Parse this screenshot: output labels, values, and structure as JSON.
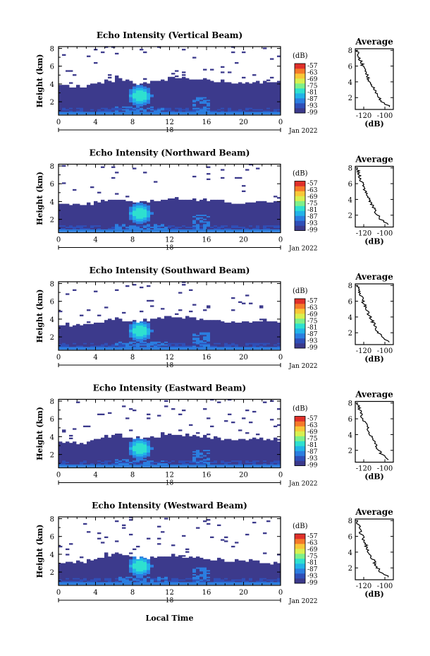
{
  "date_label": "Jan 2022",
  "xlabel": "Local Time",
  "day_label": "18",
  "colorbar": {
    "unit": "(dB)",
    "ticks": [
      "-57",
      "-63",
      "-69",
      "-75",
      "-81",
      "-87",
      "-93",
      "-99"
    ],
    "colors": [
      "#3c3a8c",
      "#2f4fb8",
      "#2b7ee0",
      "#22b3e8",
      "#2ee0d0",
      "#7ef08a",
      "#d8f050",
      "#f8c838",
      "#f57a2a",
      "#e0302a"
    ]
  },
  "chart_data": [
    {
      "type": "heatmap",
      "title": "Echo Intensity (Vertical Beam)",
      "ylabel": "Height (km)",
      "x_ticks": [
        "0",
        "4",
        "8",
        "12",
        "16",
        "20",
        "0"
      ],
      "y_ticks": [
        "2",
        "4",
        "6",
        "8"
      ],
      "xlim": [
        0,
        24
      ],
      "ylim": [
        0.5,
        8.2
      ],
      "zlim": [
        -99,
        -57
      ],
      "cloud_top_km": [
        3.8,
        3.6,
        3.6,
        3.8,
        4.1,
        4.3,
        4.7,
        4.4,
        4.0,
        4.1,
        4.3,
        4.4,
        4.6,
        4.6,
        4.5,
        4.4,
        4.3,
        4.2,
        4.1,
        4.0,
        4.0,
        4.1,
        4.2,
        4.1,
        4.0
      ],
      "average_profile": {
        "title": "Average",
        "xlabel": "(dB)",
        "x_ticks": [
          "-120",
          "-100"
        ],
        "y_ticks": [
          "2",
          "4",
          "6",
          "8"
        ],
        "xlim": [
          -128,
          -92
        ],
        "ylim": [
          0.5,
          8.2
        ],
        "height_km": [
          0.8,
          1.5,
          2.0,
          2.5,
          3.0,
          3.5,
          4.0,
          4.5,
          5.0,
          5.5,
          6.0,
          6.5,
          7.0,
          7.5,
          8.0
        ],
        "value_db": [
          -95,
          -103,
          -106,
          -108,
          -110,
          -112,
          -114,
          -116,
          -117,
          -119,
          -121,
          -122,
          -124,
          -125,
          -126
        ]
      }
    },
    {
      "type": "heatmap",
      "title": "Echo Intensity (Northward Beam)",
      "ylabel": "Height (km)",
      "x_ticks": [
        "0",
        "4",
        "8",
        "12",
        "16",
        "20",
        "0"
      ],
      "y_ticks": [
        "2",
        "4",
        "6",
        "8"
      ],
      "xlim": [
        0,
        24
      ],
      "ylim": [
        0.5,
        8.2
      ],
      "zlim": [
        -99,
        -57
      ],
      "cloud_top_km": [
        3.6,
        3.5,
        3.5,
        3.7,
        3.9,
        4.1,
        4.2,
        4.0,
        3.9,
        3.9,
        4.1,
        4.2,
        4.3,
        4.2,
        4.1,
        4.1,
        4.0,
        3.9,
        3.9,
        3.8,
        3.8,
        3.9,
        4.0,
        3.9,
        3.8
      ],
      "average_profile": {
        "title": "Average",
        "xlabel": "(dB)",
        "x_ticks": [
          "-120",
          "-100"
        ],
        "y_ticks": [
          "2",
          "4",
          "6",
          "8"
        ],
        "xlim": [
          -128,
          -92
        ],
        "ylim": [
          0.5,
          8.2
        ],
        "height_km": [
          0.8,
          1.5,
          2.0,
          2.5,
          3.0,
          3.5,
          4.0,
          4.5,
          5.0,
          5.5,
          6.0,
          6.5,
          7.0,
          7.5,
          8.0
        ],
        "value_db": [
          -96,
          -104,
          -107,
          -109,
          -111,
          -113,
          -115,
          -117,
          -118,
          -120,
          -121,
          -123,
          -124,
          -125,
          -126
        ]
      }
    },
    {
      "type": "heatmap",
      "title": "Echo Intensity (Southward Beam)",
      "ylabel": "Height (km)",
      "x_ticks": [
        "0",
        "4",
        "8",
        "12",
        "16",
        "20",
        "0"
      ],
      "y_ticks": [
        "2",
        "4",
        "6",
        "8"
      ],
      "xlim": [
        0,
        24
      ],
      "ylim": [
        0.5,
        8.2
      ],
      "zlim": [
        -99,
        -57
      ],
      "cloud_top_km": [
        3.3,
        3.2,
        3.2,
        3.4,
        3.6,
        3.9,
        4.0,
        3.8,
        3.7,
        3.8,
        4.0,
        4.1,
        4.2,
        4.1,
        4.0,
        3.9,
        3.8,
        3.7,
        3.6,
        3.6,
        3.6,
        3.7,
        3.8,
        3.7,
        3.6
      ],
      "average_profile": {
        "title": "Average",
        "xlabel": "(dB)",
        "x_ticks": [
          "-120",
          "-100"
        ],
        "y_ticks": [
          "2",
          "4",
          "6",
          "8"
        ],
        "xlim": [
          -128,
          -92
        ],
        "ylim": [
          0.5,
          8.2
        ],
        "height_km": [
          0.8,
          1.5,
          2.0,
          2.5,
          3.0,
          3.5,
          4.0,
          4.5,
          5.0,
          5.5,
          6.0,
          6.5,
          7.0,
          7.5,
          8.0
        ],
        "value_db": [
          -95,
          -103,
          -106,
          -108,
          -110,
          -112,
          -114,
          -116,
          -118,
          -119,
          -121,
          -122,
          -124,
          -125,
          -126
        ]
      }
    },
    {
      "type": "heatmap",
      "title": "Echo Intensity (Eastward Beam)",
      "ylabel": "Height (km)",
      "x_ticks": [
        "0",
        "4",
        "8",
        "12",
        "16",
        "20",
        "0"
      ],
      "y_ticks": [
        "2",
        "4",
        "6",
        "8"
      ],
      "xlim": [
        0,
        24
      ],
      "ylim": [
        0.5,
        8.2
      ],
      "zlim": [
        -99,
        -57
      ],
      "cloud_top_km": [
        3.3,
        3.2,
        3.2,
        3.4,
        3.7,
        3.9,
        4.1,
        3.9,
        3.8,
        3.9,
        4.0,
        4.2,
        4.3,
        4.2,
        4.0,
        3.9,
        3.8,
        3.7,
        3.6,
        3.6,
        3.6,
        3.7,
        3.7,
        3.6,
        3.5
      ],
      "average_profile": {
        "title": "Average",
        "xlabel": "(dB)",
        "x_ticks": [
          "-120",
          "-100"
        ],
        "y_ticks": [
          "2",
          "4",
          "6",
          "8"
        ],
        "xlim": [
          -128,
          -92
        ],
        "ylim": [
          0.5,
          8.2
        ],
        "height_km": [
          0.8,
          1.5,
          2.0,
          2.5,
          3.0,
          3.5,
          4.0,
          4.5,
          5.0,
          5.5,
          6.0,
          6.5,
          7.0,
          7.5,
          8.0
        ],
        "value_db": [
          -96,
          -103,
          -106,
          -108,
          -110,
          -112,
          -114,
          -116,
          -117,
          -119,
          -121,
          -122,
          -123,
          -125,
          -126
        ]
      }
    },
    {
      "type": "heatmap",
      "title": "Echo Intensity (Westward Beam)",
      "ylabel": "Height (km)",
      "x_ticks": [
        "0",
        "4",
        "8",
        "12",
        "16",
        "20",
        "0"
      ],
      "y_ticks": [
        "2",
        "4",
        "6",
        "8"
      ],
      "xlim": [
        0,
        24
      ],
      "ylim": [
        0.5,
        8.2
      ],
      "zlim": [
        -99,
        -57
      ],
      "cloud_top_km": [
        3.0,
        2.9,
        3.0,
        3.2,
        3.5,
        3.8,
        4.0,
        3.8,
        3.6,
        3.6,
        3.6,
        3.7,
        3.8,
        3.7,
        3.6,
        3.5,
        3.4,
        3.3,
        3.2,
        3.2,
        3.2,
        3.1,
        3.1,
        3.0,
        3.0
      ],
      "average_profile": {
        "title": "Average",
        "xlabel": "(dB)",
        "x_ticks": [
          "-120",
          "-100"
        ],
        "y_ticks": [
          "2",
          "4",
          "6",
          "8"
        ],
        "xlim": [
          -128,
          -92
        ],
        "ylim": [
          0.5,
          8.2
        ],
        "height_km": [
          0.8,
          1.5,
          2.0,
          2.5,
          3.0,
          3.5,
          4.0,
          4.5,
          5.0,
          5.5,
          6.0,
          6.5,
          7.0,
          7.5,
          8.0
        ],
        "value_db": [
          -96,
          -104,
          -107,
          -109,
          -111,
          -113,
          -115,
          -117,
          -118,
          -120,
          -121,
          -123,
          -124,
          -125,
          -126
        ]
      }
    }
  ]
}
